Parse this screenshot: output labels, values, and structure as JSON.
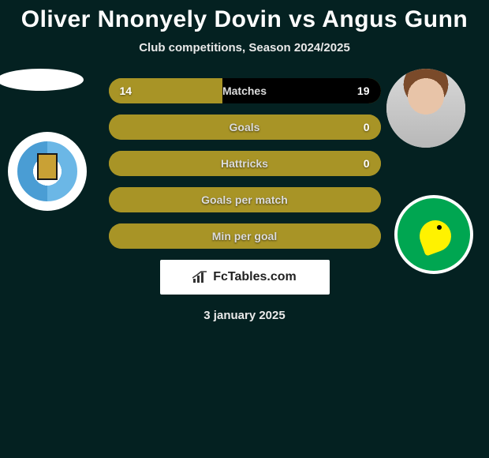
{
  "header": {
    "title": "Oliver Nnonyely Dovin vs Angus Gunn",
    "subtitle": "Club competitions, Season 2024/2025"
  },
  "colors": {
    "background": "#042121",
    "row_fill_primary": "#a89426",
    "row_fill_empty": "#000000",
    "title_color": "#ffffff",
    "subtitle_color": "#e9e9e9",
    "stat_label_color": "#dcdcdc",
    "attribution_bg": "#ffffff",
    "attribution_text": "#222222"
  },
  "typography": {
    "title_fontsize": 30,
    "title_weight": 800,
    "subtitle_fontsize": 15,
    "subtitle_weight": 700,
    "stat_label_fontsize": 14,
    "stat_value_fontsize": 14,
    "date_fontsize": 15
  },
  "players": {
    "left": {
      "name": "Oliver Nnonyely Dovin",
      "club": "Coventry City"
    },
    "right": {
      "name": "Angus Gunn",
      "club": "Norwich City"
    }
  },
  "stats": {
    "rows": [
      {
        "label": "Matches",
        "left": "14",
        "right": "19",
        "left_pct": 42,
        "right_pct": 58,
        "left_color": "#a89426",
        "right_color": "#000000"
      },
      {
        "label": "Goals",
        "left": "",
        "right": "0",
        "left_pct": 100,
        "right_pct": 0,
        "left_color": "#a89426",
        "right_color": "#000000"
      },
      {
        "label": "Hattricks",
        "left": "",
        "right": "0",
        "left_pct": 100,
        "right_pct": 0,
        "left_color": "#a89426",
        "right_color": "#000000"
      },
      {
        "label": "Goals per match",
        "left": "",
        "right": "",
        "left_pct": 100,
        "right_pct": 0,
        "left_color": "#a89426",
        "right_color": "#000000"
      },
      {
        "label": "Min per goal",
        "left": "",
        "right": "",
        "left_pct": 100,
        "right_pct": 0,
        "left_color": "#a89426",
        "right_color": "#000000"
      }
    ]
  },
  "attribution": {
    "text": "FcTables.com"
  },
  "date": {
    "text": "3 january 2025"
  }
}
